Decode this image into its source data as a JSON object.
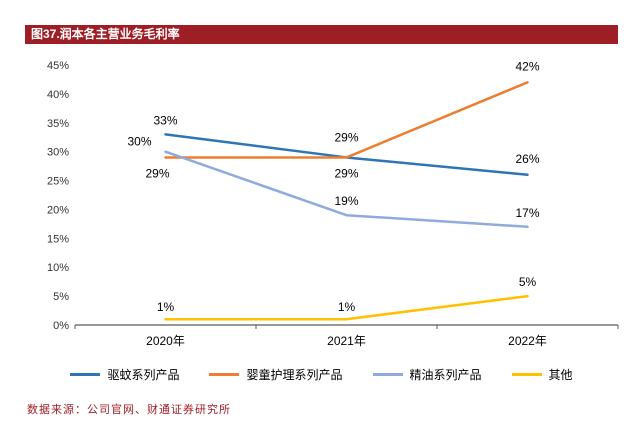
{
  "figure": {
    "title": "图37.润本各主营业务毛利率",
    "source": "数据来源：公司官网、财通证券研究所"
  },
  "chart_data": {
    "type": "line",
    "title": "图37.润本各主营业务毛利率",
    "categories": [
      "2020年",
      "2021年",
      "2022年"
    ],
    "series": [
      {
        "name": "驱蚊系列产品",
        "color": "#2E75B6",
        "values": [
          33,
          29,
          26
        ],
        "label_offsets": [
          [
            0,
            -10
          ],
          [
            0,
            20
          ],
          [
            0,
            -12
          ]
        ]
      },
      {
        "name": "婴童护理系列产品",
        "color": "#ED7D31",
        "values": [
          29,
          29,
          42
        ],
        "label_offsets": [
          [
            -8,
            20
          ],
          [
            0,
            -16
          ],
          [
            0,
            -12
          ]
        ]
      },
      {
        "name": "精油系列产品",
        "color": "#8FAADC",
        "values": [
          30,
          19,
          17
        ],
        "label_offsets": [
          [
            -26,
            -6
          ],
          [
            0,
            -10
          ],
          [
            0,
            -10
          ]
        ]
      },
      {
        "name": "其他",
        "color": "#FFC000",
        "values": [
          1,
          1,
          5
        ],
        "label_offsets": [
          [
            0,
            -8
          ],
          [
            0,
            -8
          ],
          [
            0,
            -10
          ]
        ]
      }
    ],
    "ylim": [
      0,
      45
    ],
    "ytick_step": 5,
    "ytick_suffix": "%",
    "data_label_suffix": "%",
    "grid": false,
    "legend_position": "bottom",
    "colors": {
      "title_bar_bg": "#9E1E26",
      "title_text": "#FFFFFF",
      "source_text": "#9E1E26",
      "axis": "#595959",
      "tick_label": "#333333",
      "data_label": "#000000"
    }
  }
}
